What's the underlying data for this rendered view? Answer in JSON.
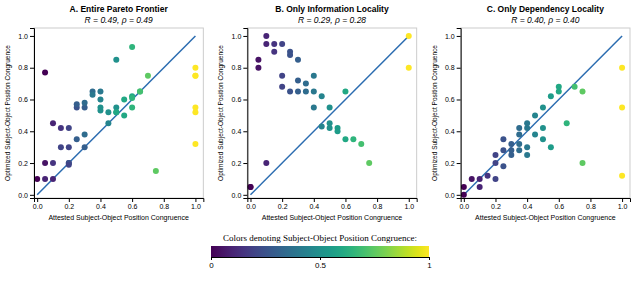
{
  "chart_data": [
    {
      "type": "scatter",
      "title": "A. Entire Pareto Frontier",
      "subtitle": "R = 0.49, ρ = 0.49",
      "x_label": "Attested Subject-Object Position Congruence",
      "y_label": "Optimized Subject-Object Position Congruence",
      "series": [
        {
          "type": "scatter",
          "x": [
            0.0,
            0.05,
            0.05,
            0.05,
            0.1,
            0.1,
            0.1,
            0.15,
            0.15,
            0.2,
            0.2,
            0.2,
            0.2,
            0.2,
            0.25,
            0.25,
            0.25,
            0.3,
            0.3,
            0.3,
            0.3,
            0.35,
            0.35,
            0.4,
            0.4,
            0.4,
            0.4,
            0.45,
            0.45,
            0.5,
            0.5,
            0.5,
            0.5,
            0.55,
            0.55,
            0.6,
            0.6,
            0.6,
            0.6,
            0.65,
            0.65,
            0.7,
            0.75,
            1.0,
            1.0,
            1.0,
            1.0,
            1.0,
            1.0
          ],
          "values": [
            0.1,
            0.77,
            0.2,
            0.1,
            0.45,
            0.2,
            0.1,
            0.42,
            0.3,
            0.42,
            0.3,
            0.2,
            0.2,
            0.19,
            0.55,
            0.57,
            0.35,
            0.55,
            0.58,
            0.38,
            0.3,
            0.65,
            0.63,
            0.65,
            0.6,
            0.53,
            0.55,
            0.52,
            0.45,
            0.85,
            0.55,
            0.52,
            0.52,
            0.6,
            0.5,
            0.62,
            0.61,
            0.93,
            0.55,
            0.65,
            0.65,
            0.75,
            0.15,
            0.8,
            0.75,
            0.75,
            0.55,
            0.52,
            0.32
          ],
          "color_values": [
            0.0,
            0.0,
            0.05,
            0.1,
            0.1,
            0.15,
            0.1,
            0.15,
            0.2,
            0.2,
            0.2,
            0.2,
            0.25,
            0.2,
            0.25,
            0.3,
            0.3,
            0.3,
            0.35,
            0.35,
            0.3,
            0.35,
            0.4,
            0.4,
            0.45,
            0.5,
            0.5,
            0.5,
            0.45,
            0.5,
            0.5,
            0.55,
            0.6,
            0.6,
            0.6,
            0.6,
            0.65,
            0.65,
            0.65,
            0.65,
            0.7,
            0.75,
            0.75,
            1.0,
            1.0,
            1.0,
            1.0,
            1.0,
            1.0
          ]
        },
        {
          "type": "line",
          "x": [
            0,
            1
          ],
          "values": [
            0,
            1
          ],
          "color": "#2b6cb0"
        }
      ],
      "xlim": [
        -0.02,
        1.05
      ],
      "ylim": [
        -0.02,
        1.05
      ],
      "xticks": [
        {
          "value": 0,
          "label": "0.0"
        },
        0.2,
        0.4,
        0.6,
        0.8,
        {
          "value": 1,
          "label": "1.0"
        }
      ],
      "yticks": [
        {
          "value": 0,
          "label": "0.0"
        },
        0.2,
        0.4,
        0.6,
        0.8,
        {
          "value": 1,
          "label": "1.0"
        }
      ]
    },
    {
      "type": "scatter",
      "title": "B. Only Information Locality",
      "subtitle": "R = 0.29, ρ = 0.28",
      "x_label": "Attested Subject-Object Position Congruence",
      "y_label": "Optimized Subject-Object Position Congruence",
      "series": [
        {
          "type": "scatter",
          "x": [
            0.0,
            0.0,
            0.05,
            0.05,
            0.1,
            0.1,
            0.1,
            0.15,
            0.15,
            0.2,
            0.2,
            0.2,
            0.25,
            0.25,
            0.25,
            0.3,
            0.3,
            0.3,
            0.35,
            0.35,
            0.4,
            0.4,
            0.4,
            0.45,
            0.45,
            0.5,
            0.5,
            0.5,
            0.55,
            0.55,
            0.6,
            0.6,
            0.65,
            0.7,
            0.75,
            1.0,
            1.0
          ],
          "values": [
            0.05,
            0.05,
            0.85,
            0.8,
            1.0,
            0.95,
            0.2,
            0.95,
            0.9,
            0.95,
            0.75,
            0.68,
            0.9,
            0.88,
            0.65,
            0.85,
            0.72,
            0.65,
            0.7,
            0.65,
            0.75,
            0.65,
            0.55,
            0.62,
            0.43,
            0.55,
            0.45,
            0.42,
            0.42,
            0.4,
            0.65,
            0.35,
            0.35,
            0.32,
            0.2,
            1.0,
            0.8
          ],
          "color_values": [
            0.0,
            0.0,
            0.05,
            0.05,
            0.1,
            0.1,
            0.1,
            0.15,
            0.15,
            0.2,
            0.2,
            0.2,
            0.25,
            0.25,
            0.25,
            0.3,
            0.3,
            0.3,
            0.35,
            0.35,
            0.4,
            0.4,
            0.4,
            0.45,
            0.45,
            0.5,
            0.5,
            0.5,
            0.55,
            0.55,
            0.6,
            0.6,
            0.65,
            0.7,
            0.75,
            1.0,
            1.0
          ]
        },
        {
          "type": "line",
          "x": [
            0,
            1
          ],
          "values": [
            0,
            1
          ],
          "color": "#2b6cb0"
        }
      ],
      "xlim": [
        -0.02,
        1.05
      ],
      "ylim": [
        -0.02,
        1.05
      ],
      "xticks": [
        {
          "value": 0,
          "label": "0.0"
        },
        0.2,
        0.4,
        0.6,
        0.8,
        {
          "value": 1,
          "label": "1.0"
        }
      ],
      "yticks": [
        {
          "value": 0,
          "label": "0.0"
        },
        0.2,
        0.4,
        0.6,
        0.8,
        {
          "value": 1,
          "label": "1.0"
        }
      ]
    },
    {
      "type": "scatter",
      "title": "C. Only Dependency Locality",
      "subtitle": "R = 0.40, ρ = 0.40",
      "x_label": "Attested Subject-Object Position Congruence",
      "y_label": "Optimized Subject-Object Position Congruence",
      "series": [
        {
          "type": "scatter",
          "x": [
            0.0,
            0.0,
            0.05,
            0.1,
            0.1,
            0.15,
            0.2,
            0.2,
            0.2,
            0.25,
            0.25,
            0.25,
            0.3,
            0.3,
            0.3,
            0.35,
            0.35,
            0.35,
            0.35,
            0.4,
            0.4,
            0.4,
            0.4,
            0.45,
            0.45,
            0.5,
            0.5,
            0.5,
            0.55,
            0.55,
            0.6,
            0.6,
            0.65,
            0.7,
            0.75,
            0.75,
            1.0,
            1.0,
            1.0
          ],
          "values": [
            0.0,
            0.05,
            0.1,
            0.1,
            0.05,
            0.12,
            0.25,
            0.2,
            0.1,
            0.35,
            0.28,
            0.18,
            0.32,
            0.28,
            0.25,
            0.42,
            0.38,
            0.32,
            0.28,
            0.45,
            0.42,
            0.3,
            0.25,
            0.5,
            0.38,
            0.55,
            0.42,
            0.35,
            0.62,
            0.3,
            0.65,
            0.68,
            0.45,
            0.68,
            0.65,
            0.2,
            0.8,
            0.55,
            0.12
          ],
          "color_values": [
            0.0,
            0.0,
            0.05,
            0.1,
            0.1,
            0.15,
            0.2,
            0.2,
            0.2,
            0.25,
            0.25,
            0.25,
            0.3,
            0.3,
            0.3,
            0.35,
            0.35,
            0.35,
            0.35,
            0.4,
            0.4,
            0.4,
            0.4,
            0.45,
            0.45,
            0.5,
            0.5,
            0.5,
            0.55,
            0.55,
            0.6,
            0.6,
            0.65,
            0.7,
            0.75,
            0.75,
            1.0,
            1.0,
            1.0
          ]
        },
        {
          "type": "line",
          "x": [
            0,
            1
          ],
          "values": [
            0,
            1
          ],
          "color": "#2b6cb0"
        }
      ],
      "xlim": [
        -0.02,
        1.05
      ],
      "ylim": [
        -0.02,
        1.05
      ],
      "xticks": [
        {
          "value": 0,
          "label": "0.0"
        },
        0.2,
        0.4,
        0.6,
        0.8,
        {
          "value": 1,
          "label": "1.0"
        }
      ],
      "yticks": [
        {
          "value": 0,
          "label": "0.0"
        },
        0.2,
        0.4,
        0.6,
        0.8,
        {
          "value": 1,
          "label": "1.0"
        }
      ]
    },
    {
      "type": "colorbar",
      "title": "Colors denoting Subject-Object Position Congruence:",
      "xlim": [
        0,
        1
      ],
      "xticks": [
        0,
        0.5,
        1
      ],
      "color": "viridis"
    }
  ]
}
